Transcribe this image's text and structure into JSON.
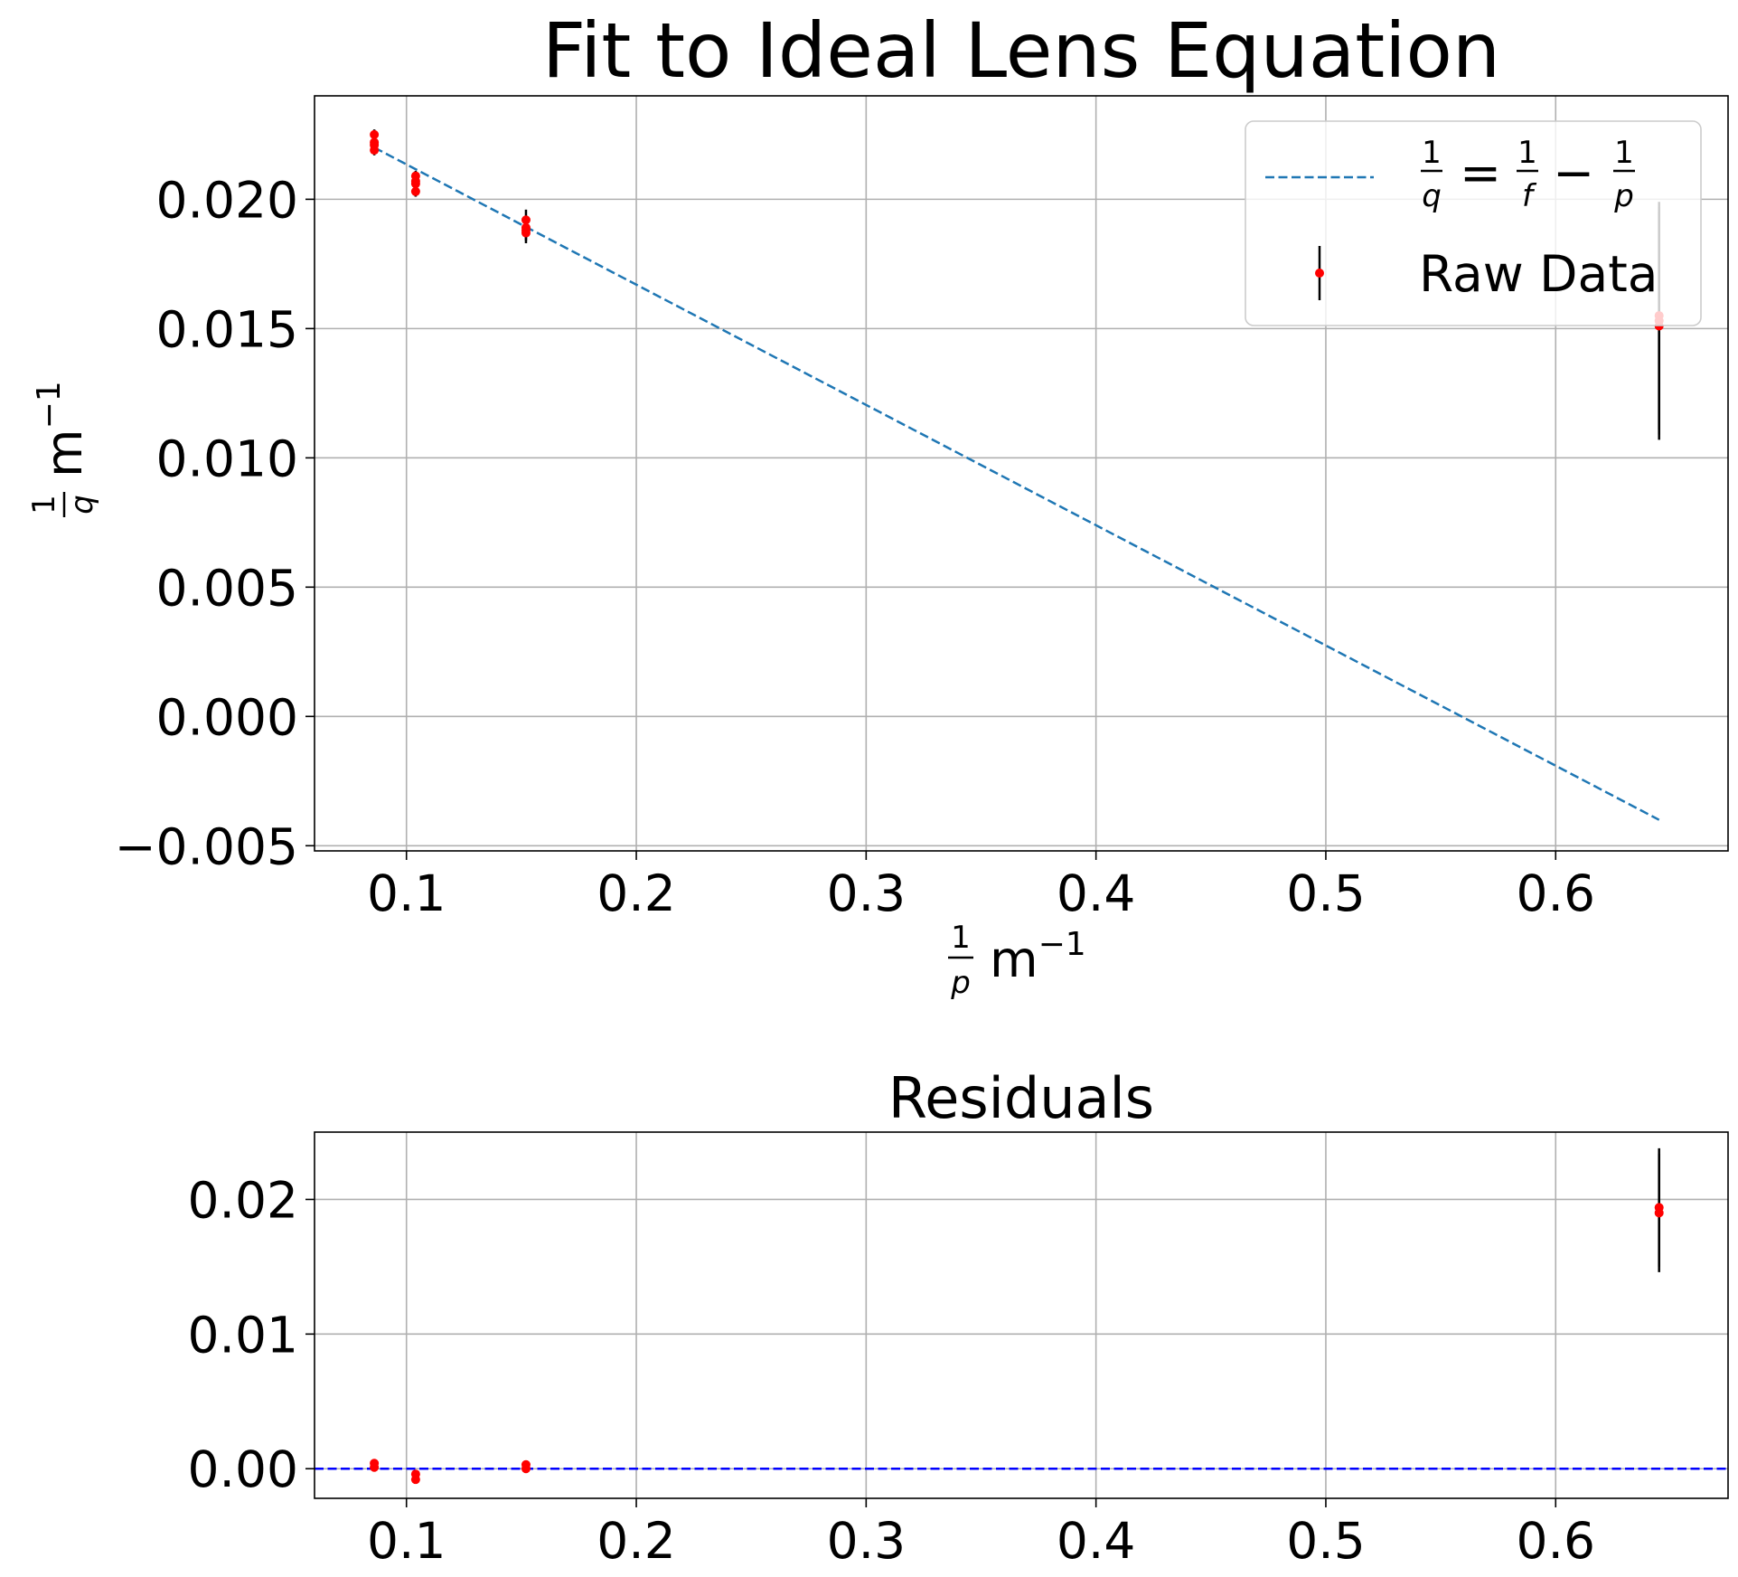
{
  "chart_data": [
    {
      "type": "scatter",
      "title": "Fit to Ideal Lens Equation",
      "xlabel": {
        "frac_num": "1",
        "frac_den": "p",
        "unit": "m",
        "unit_exp": "−1"
      },
      "ylabel": {
        "frac_num": "1",
        "frac_den": "q",
        "unit": "m",
        "unit_exp": "−1"
      },
      "xlim": [
        0.06,
        0.675
      ],
      "ylim": [
        -0.0052,
        0.024
      ],
      "xticks": [
        0.1,
        0.2,
        0.3,
        0.4,
        0.5,
        0.6
      ],
      "xtick_labels": [
        "0.1",
        "0.2",
        "0.3",
        "0.4",
        "0.5",
        "0.6"
      ],
      "yticks": [
        -0.005,
        0.0,
        0.005,
        0.01,
        0.015,
        0.02
      ],
      "ytick_labels": [
        "−0.005",
        "0.000",
        "0.005",
        "0.010",
        "0.015",
        "0.020"
      ],
      "grid": true,
      "legend_placement": "top-right",
      "series": [
        {
          "name": "1/q = 1/f − 1/p",
          "kind": "dashed-line",
          "color": "#1f77b4",
          "x": [
            0.086,
            0.645
          ],
          "y": [
            0.022,
            -0.004
          ]
        },
        {
          "name": "Raw Data",
          "kind": "errorbar",
          "color": "#ff0000",
          "ecolor": "#000000",
          "x": [
            0.086,
            0.086,
            0.086,
            0.086,
            0.104,
            0.104,
            0.104,
            0.104,
            0.152,
            0.152,
            0.152,
            0.152,
            0.645,
            0.645,
            0.645
          ],
          "y": [
            0.0225,
            0.0222,
            0.0221,
            0.0219,
            0.0209,
            0.0207,
            0.0206,
            0.0203,
            0.0192,
            0.0189,
            0.0188,
            0.0187,
            0.0155,
            0.0153,
            0.0151
          ],
          "yerr": [
            0.0002,
            0.0002,
            0.0002,
            0.0002,
            0.0002,
            0.0002,
            0.0002,
            0.0002,
            0.0004,
            0.0004,
            0.0004,
            0.0004,
            0.0044,
            0.0044,
            0.0044
          ]
        }
      ],
      "legend": {
        "fit": {
          "lhs_num": "1",
          "lhs_den": "q",
          "rhs1_num": "1",
          "rhs1_den": "f",
          "rhs2_num": "1",
          "rhs2_den": "p",
          "eq": "=",
          "minus": "−"
        },
        "data_label": "Raw Data"
      }
    },
    {
      "type": "scatter",
      "title": "Residuals",
      "xlim": [
        0.06,
        0.675
      ],
      "ylim": [
        -0.0022,
        0.025
      ],
      "xticks": [
        0.1,
        0.2,
        0.3,
        0.4,
        0.5,
        0.6
      ],
      "xtick_labels": [
        "0.1",
        "0.2",
        "0.3",
        "0.4",
        "0.5",
        "0.6"
      ],
      "yticks": [
        0.0,
        0.01,
        0.02
      ],
      "ytick_labels": [
        "0.00",
        "0.01",
        "0.02"
      ],
      "grid": true,
      "zero_line": {
        "y": 0.0,
        "color": "#0000ff"
      },
      "series": [
        {
          "name": "",
          "kind": "errorbar",
          "color": "#ff0000",
          "ecolor": "#000000",
          "x": [
            0.086,
            0.086,
            0.104,
            0.104,
            0.152,
            0.152,
            0.645,
            0.645
          ],
          "y": [
            0.0004,
            0.0001,
            -0.0004,
            -0.0008,
            0.0003,
            0.0,
            0.0194,
            0.019
          ],
          "yerr": [
            0.0002,
            0.0002,
            0.0002,
            0.0002,
            0.0003,
            0.0003,
            0.0044,
            0.0044
          ]
        }
      ]
    }
  ]
}
